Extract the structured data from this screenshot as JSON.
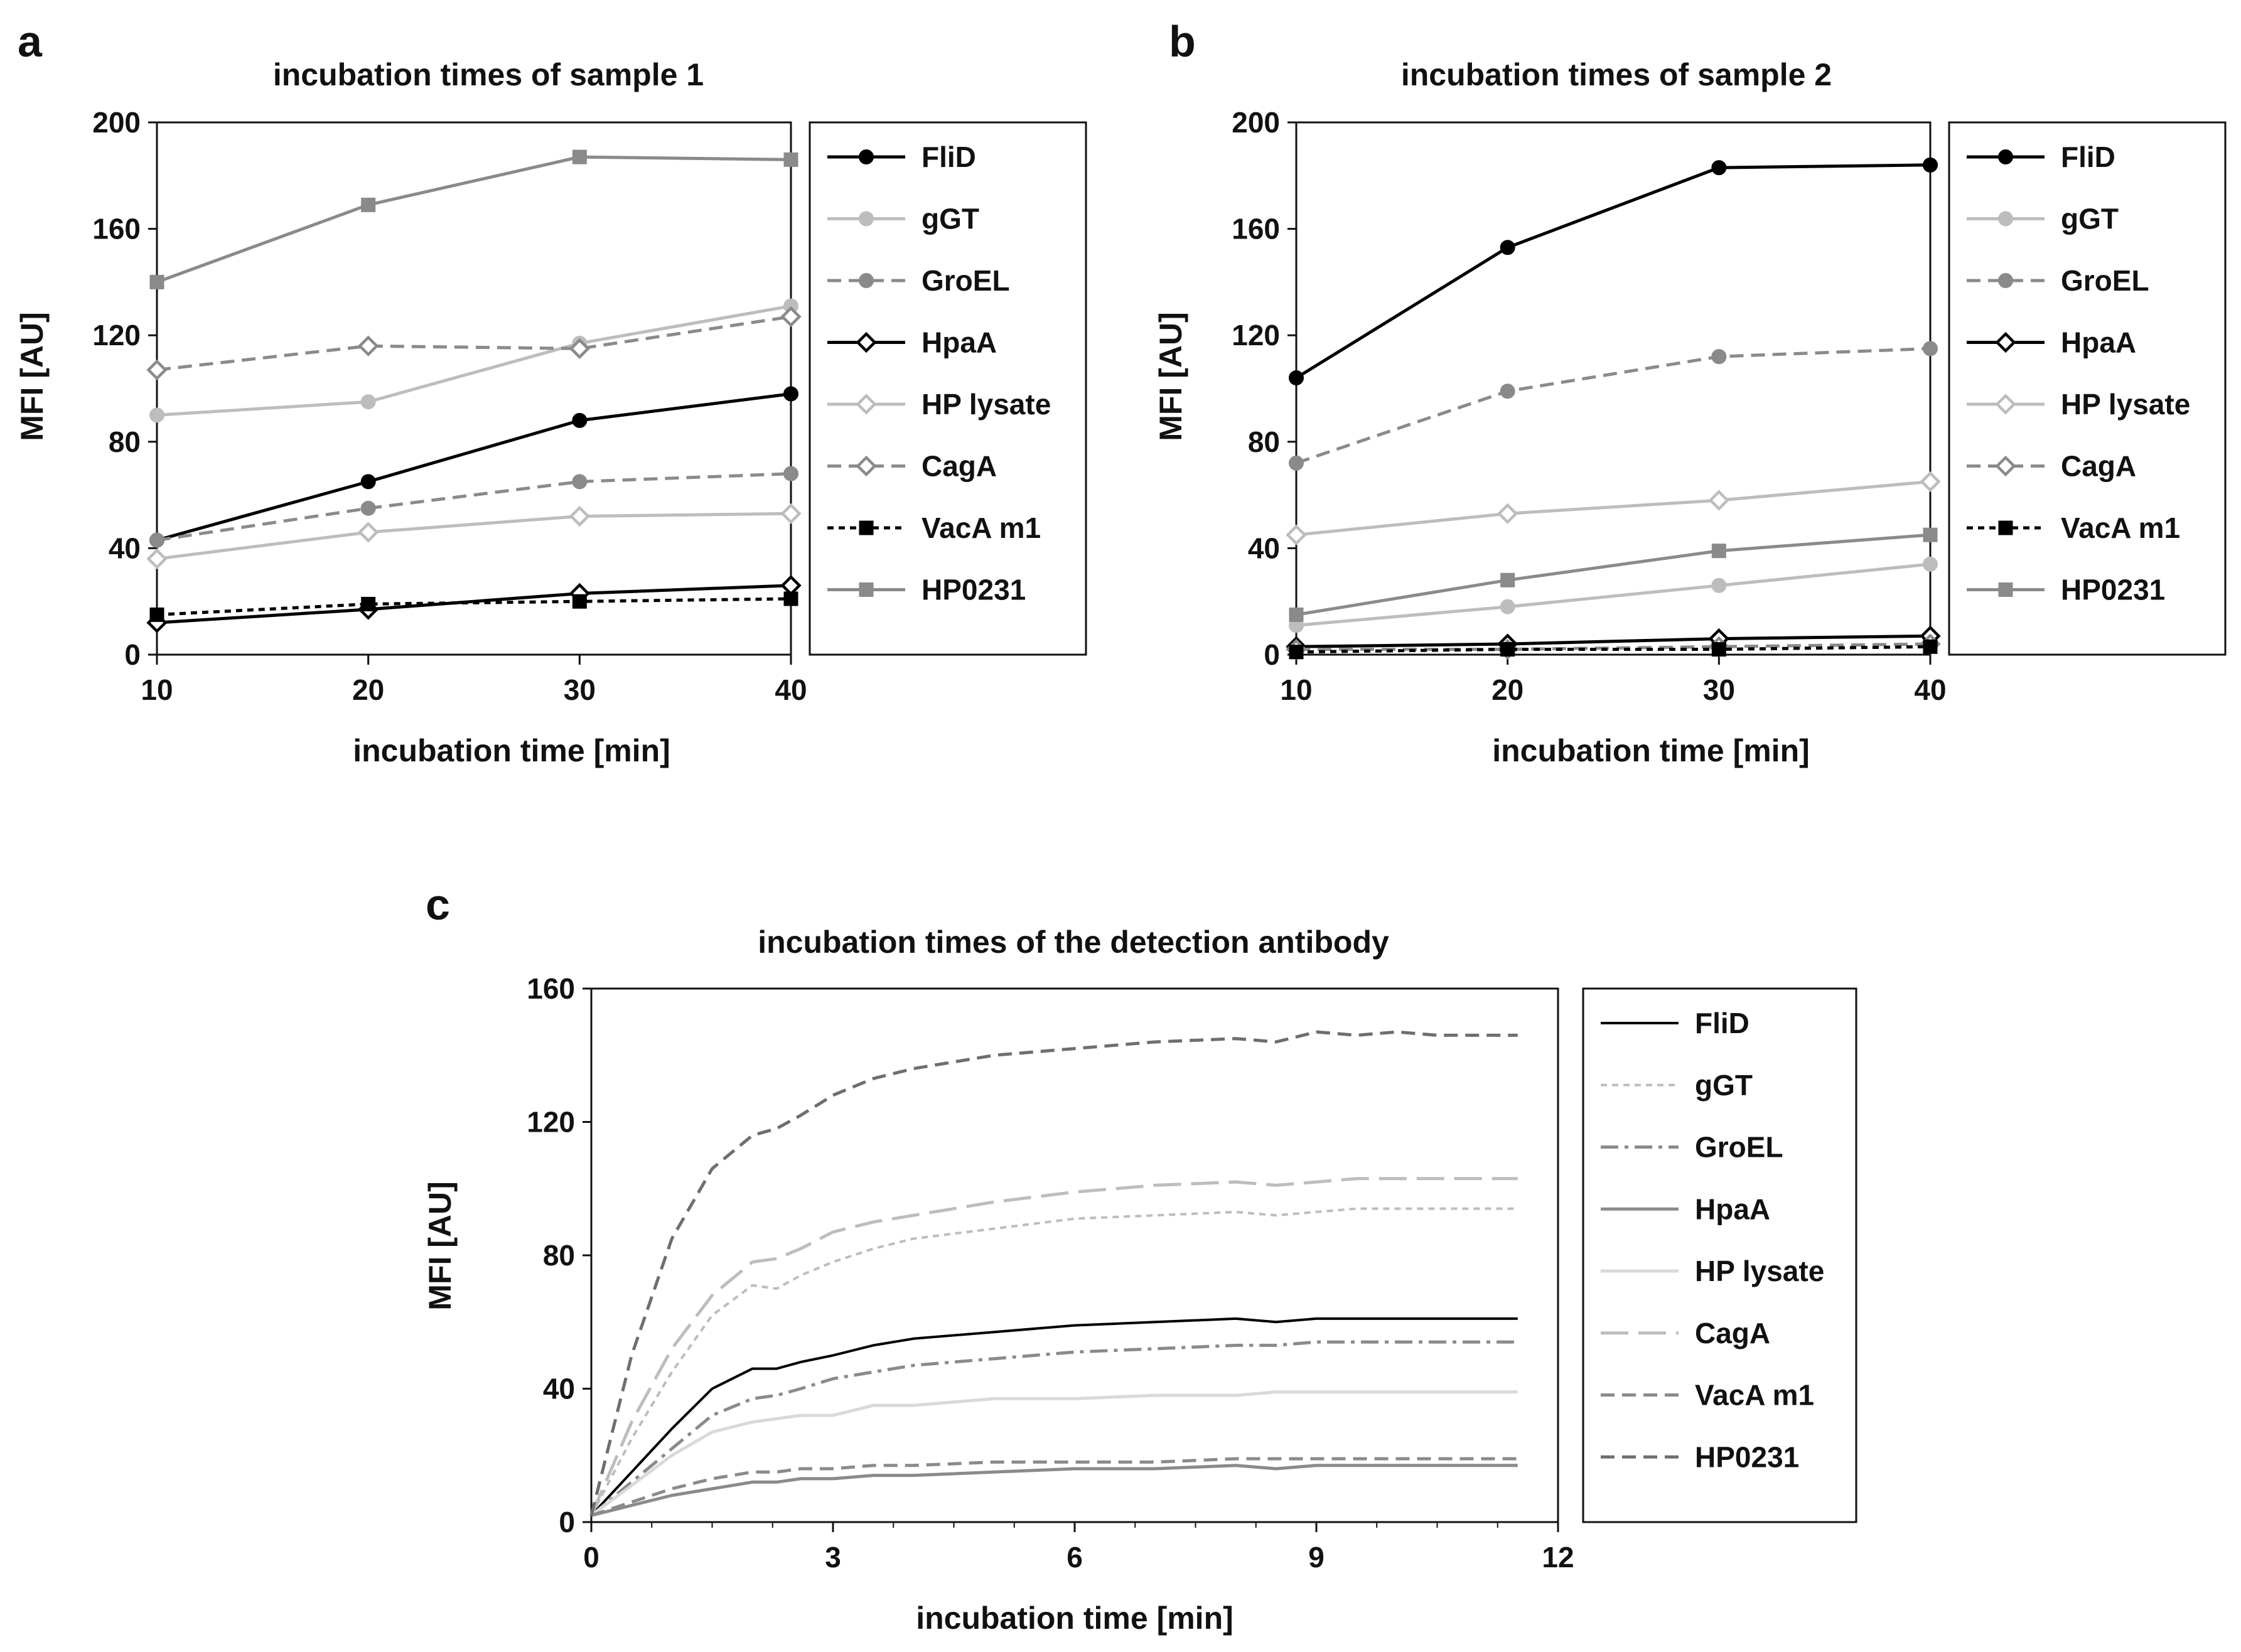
{
  "colors": {
    "black": "#000000",
    "dark_gray": "#6e6e6e",
    "mid_gray": "#8a8a8a",
    "light_gray": "#bdbdbd",
    "very_light_gray": "#d9d9d9"
  },
  "chart_data": [
    {
      "panel": "a",
      "type": "line",
      "title": "incubation times of sample 1",
      "xlabel": "incubation time [min]",
      "ylabel": "MFI [AU]",
      "x": [
        10,
        20,
        30,
        40
      ],
      "xlim": [
        10,
        40
      ],
      "ylim": [
        0,
        200
      ],
      "xticks": [
        10,
        20,
        30,
        40
      ],
      "yticks": [
        0,
        40,
        80,
        120,
        160,
        200
      ],
      "legend_position": "right",
      "series": [
        {
          "name": "FliD",
          "values": [
            43,
            65,
            88,
            98
          ],
          "color": "#000000",
          "marker": "circle",
          "dash": "solid",
          "fill": "filled"
        },
        {
          "name": "gGT",
          "values": [
            90,
            95,
            117,
            131
          ],
          "color": "#bdbdbd",
          "marker": "circle",
          "dash": "solid",
          "fill": "filled"
        },
        {
          "name": "GroEL",
          "values": [
            43,
            55,
            65,
            68
          ],
          "color": "#8a8a8a",
          "marker": "circle",
          "dash": "dashed",
          "fill": "filled"
        },
        {
          "name": "HpaA",
          "values": [
            12,
            17,
            23,
            26
          ],
          "color": "#000000",
          "marker": "diamond",
          "dash": "solid",
          "fill": "open"
        },
        {
          "name": "HP lysate",
          "values": [
            36,
            46,
            52,
            53
          ],
          "color": "#bdbdbd",
          "marker": "diamond",
          "dash": "solid",
          "fill": "open"
        },
        {
          "name": "CagA",
          "values": [
            107,
            116,
            115,
            127
          ],
          "color": "#8a8a8a",
          "marker": "diamond",
          "dash": "dashed",
          "fill": "open"
        },
        {
          "name": "VacA m1",
          "values": [
            15,
            19,
            20,
            21
          ],
          "color": "#000000",
          "marker": "square",
          "dash": "dotted",
          "fill": "filled"
        },
        {
          "name": "HP0231",
          "values": [
            140,
            169,
            187,
            186
          ],
          "color": "#8a8a8a",
          "marker": "square",
          "dash": "solid",
          "fill": "filled"
        }
      ]
    },
    {
      "panel": "b",
      "type": "line",
      "title": "incubation times of sample 2",
      "xlabel": "incubation time [min]",
      "ylabel": "MFI [AU]",
      "x": [
        10,
        20,
        30,
        40
      ],
      "xlim": [
        10,
        40
      ],
      "ylim": [
        0,
        200
      ],
      "xticks": [
        10,
        20,
        30,
        40
      ],
      "yticks": [
        0,
        40,
        80,
        120,
        160,
        200
      ],
      "legend_position": "right",
      "series": [
        {
          "name": "FliD",
          "values": [
            104,
            153,
            183,
            184
          ],
          "color": "#000000",
          "marker": "circle",
          "dash": "solid",
          "fill": "filled"
        },
        {
          "name": "gGT",
          "values": [
            11,
            18,
            26,
            34
          ],
          "color": "#bdbdbd",
          "marker": "circle",
          "dash": "solid",
          "fill": "filled"
        },
        {
          "name": "GroEL",
          "values": [
            72,
            99,
            112,
            115
          ],
          "color": "#8a8a8a",
          "marker": "circle",
          "dash": "dashed",
          "fill": "filled"
        },
        {
          "name": "HpaA",
          "values": [
            3,
            4,
            6,
            7
          ],
          "color": "#000000",
          "marker": "diamond",
          "dash": "solid",
          "fill": "open"
        },
        {
          "name": "HP lysate",
          "values": [
            45,
            53,
            58,
            65
          ],
          "color": "#bdbdbd",
          "marker": "diamond",
          "dash": "solid",
          "fill": "open"
        },
        {
          "name": "CagA",
          "values": [
            2,
            2,
            3,
            4
          ],
          "color": "#8a8a8a",
          "marker": "diamond",
          "dash": "dashed",
          "fill": "open"
        },
        {
          "name": "VacA m1",
          "values": [
            1,
            2,
            2,
            3
          ],
          "color": "#000000",
          "marker": "square",
          "dash": "dotted",
          "fill": "filled"
        },
        {
          "name": "HP0231",
          "values": [
            15,
            28,
            39,
            45
          ],
          "color": "#8a8a8a",
          "marker": "square",
          "dash": "solid",
          "fill": "filled"
        }
      ]
    },
    {
      "panel": "c",
      "type": "line",
      "title": "incubation times of the detection antibody",
      "xlabel": "incubation time [min]",
      "ylabel": "MFI [AU]",
      "x": [
        0,
        0.5,
        1,
        1.5,
        2,
        2.3,
        2.6,
        3,
        3.5,
        4,
        5,
        6,
        7,
        8,
        8.5,
        9,
        9.5,
        10,
        10.5,
        11,
        11.5
      ],
      "xlim": [
        0,
        12
      ],
      "ylim": [
        0,
        160
      ],
      "xticks": [
        0,
        3,
        6,
        9,
        12
      ],
      "yticks": [
        0,
        40,
        80,
        120,
        160
      ],
      "legend_position": "right",
      "series": [
        {
          "name": "FliD",
          "values": [
            2,
            15,
            28,
            40,
            46,
            46,
            48,
            50,
            53,
            55,
            57,
            59,
            60,
            61,
            60,
            61,
            61,
            61,
            61,
            61,
            61
          ],
          "color": "#000000",
          "dash": "solid",
          "width": 4
        },
        {
          "name": "gGT",
          "values": [
            2,
            25,
            45,
            62,
            71,
            70,
            74,
            78,
            82,
            85,
            88,
            91,
            92,
            93,
            92,
            93,
            94,
            94,
            94,
            94,
            94
          ],
          "color": "#bdbdbd",
          "dash": "dotted",
          "width": 4
        },
        {
          "name": "GroEL",
          "values": [
            2,
            12,
            22,
            32,
            37,
            38,
            40,
            43,
            45,
            47,
            49,
            51,
            52,
            53,
            53,
            54,
            54,
            54,
            54,
            54,
            54
          ],
          "color": "#8a8a8a",
          "dash": "dashdot",
          "width": 5
        },
        {
          "name": "HpaA",
          "values": [
            2,
            5,
            8,
            10,
            12,
            12,
            13,
            13,
            14,
            14,
            15,
            16,
            16,
            17,
            16,
            17,
            17,
            17,
            17,
            17,
            17
          ],
          "color": "#8a8a8a",
          "dash": "solid",
          "width": 5
        },
        {
          "name": "HP lysate",
          "values": [
            2,
            11,
            20,
            27,
            30,
            31,
            32,
            32,
            35,
            35,
            37,
            37,
            38,
            38,
            39,
            39,
            39,
            39,
            39,
            39,
            39
          ],
          "color": "#d9d9d9",
          "dash": "solid",
          "width": 5
        },
        {
          "name": "CagA",
          "values": [
            2,
            30,
            52,
            68,
            78,
            79,
            82,
            87,
            90,
            92,
            96,
            99,
            101,
            102,
            101,
            102,
            103,
            103,
            103,
            103,
            103
          ],
          "color": "#bdbdbd",
          "dash": "longdash",
          "width": 5
        },
        {
          "name": "VacA m1",
          "values": [
            2,
            6,
            10,
            13,
            15,
            15,
            16,
            16,
            17,
            17,
            18,
            18,
            18,
            19,
            19,
            19,
            19,
            19,
            19,
            19,
            19
          ],
          "color": "#8a8a8a",
          "dash": "dashed",
          "width": 5
        },
        {
          "name": "HP0231",
          "values": [
            2,
            50,
            85,
            106,
            116,
            118,
            122,
            128,
            133,
            136,
            140,
            142,
            144,
            145,
            144,
            147,
            146,
            147,
            146,
            146,
            146
          ],
          "color": "#6e6e6e",
          "dash": "dashed",
          "width": 5
        }
      ]
    }
  ]
}
